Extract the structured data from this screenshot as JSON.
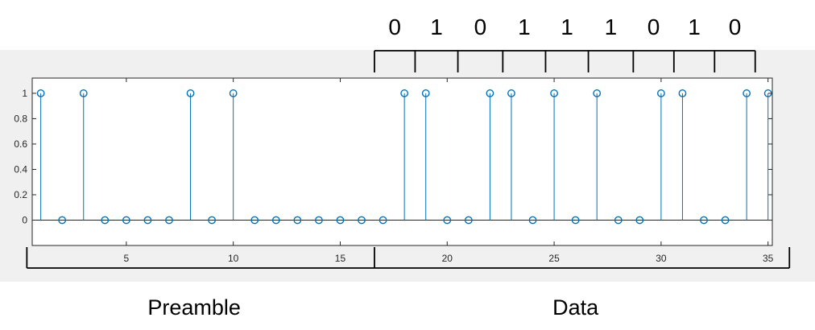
{
  "chart_data": {
    "type": "stem",
    "title": "",
    "xlabel": "",
    "ylabel": "",
    "xlim": [
      0.6,
      35.2
    ],
    "ylim": [
      -0.2,
      1.12
    ],
    "xticks": [
      5,
      10,
      15,
      20,
      25,
      30,
      35
    ],
    "yticks": [
      0,
      0.2,
      0.4,
      0.6,
      0.8,
      1
    ],
    "grid": false,
    "series": [
      {
        "color": "#0072BD",
        "x": [
          1,
          2,
          3,
          4,
          5,
          6,
          7,
          8,
          9,
          10,
          11,
          12,
          13,
          14,
          15,
          16,
          17,
          18,
          19,
          20,
          21,
          22,
          23,
          24,
          25,
          26,
          27,
          28,
          29,
          30,
          31,
          32,
          33,
          34,
          35
        ],
        "y": [
          1,
          0,
          1,
          0,
          0,
          0,
          0,
          1,
          0,
          1,
          0,
          0,
          0,
          0,
          0,
          0,
          0,
          1,
          1,
          0,
          0,
          1,
          1,
          0,
          1,
          0,
          1,
          0,
          0,
          1,
          1,
          0,
          0,
          1,
          1
        ]
      }
    ],
    "annotations": {
      "bits": [
        "0",
        "1",
        "0",
        "1",
        "1",
        "1",
        "0",
        "1",
        "0"
      ],
      "bit_boundaries_x": [
        16.6,
        18.5,
        20.5,
        22.6,
        24.6,
        26.6,
        28.7,
        30.6,
        32.5,
        34.4
      ],
      "sections": [
        {
          "label": "Preamble",
          "x_start": 0.35,
          "x_end": 16.6
        },
        {
          "label": "Data",
          "x_start": 16.6,
          "x_end": 36.0
        }
      ]
    }
  }
}
